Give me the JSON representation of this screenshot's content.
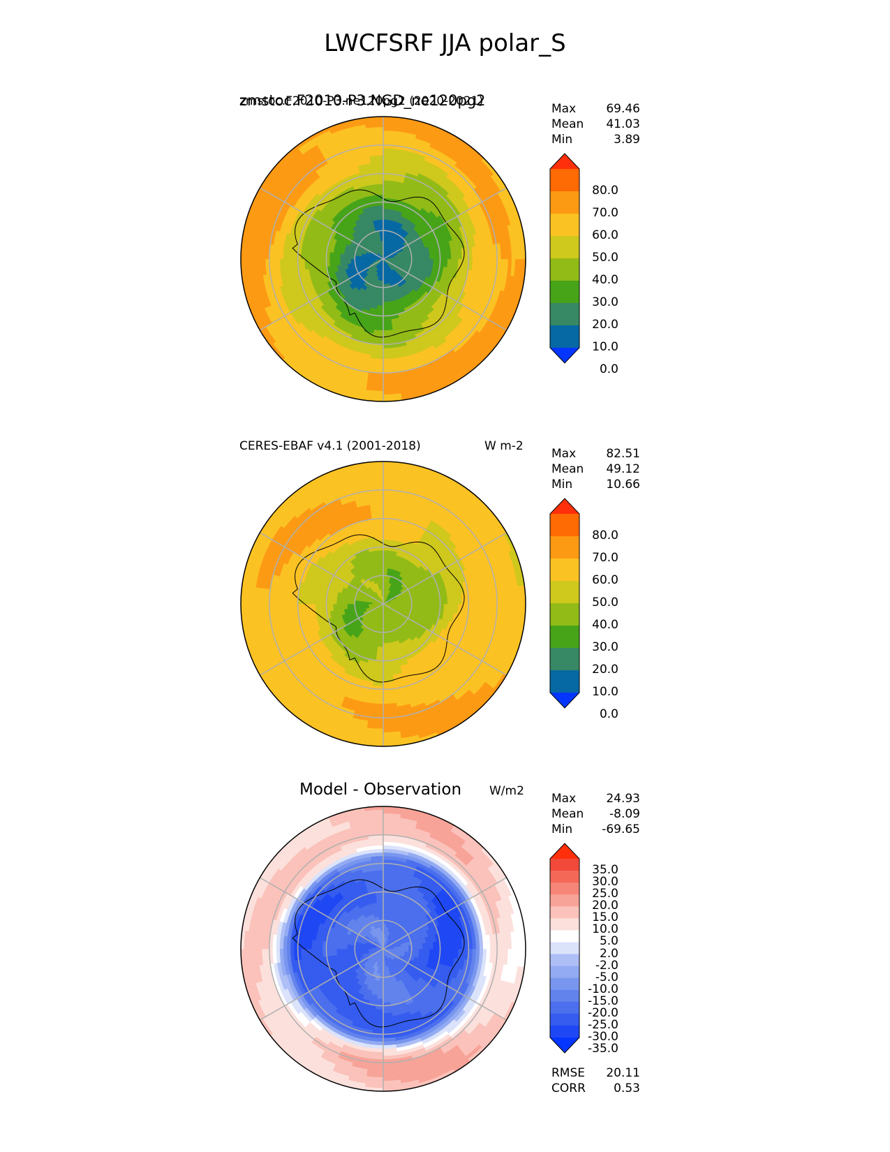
{
  "figure_title": "LWCFSRF JJA polar_S",
  "panels": [
    {
      "left_title": "zmstoc.F2010-P3.NGD_ne120pg2",
      "left_title_overlap": "zmstoc.F2010-P3.ne120pg2 (2020-2021)",
      "center_title": "",
      "units": "",
      "stats": {
        "max_label": "Max",
        "max": "69.46",
        "mean_label": "Mean",
        "mean": "41.03",
        "min_label": "Min",
        "min": "3.89"
      },
      "colorbar_ticks": [
        "80.0",
        "70.0",
        "60.0",
        "50.0",
        "40.0",
        "30.0",
        "20.0",
        "10.0",
        "0.0"
      ]
    },
    {
      "left_title": "CERES-EBAF v4.1 (2001-2018)",
      "left_title_overlap": "",
      "center_title": "",
      "units": "W m-2",
      "stats": {
        "max_label": "Max",
        "max": "82.51",
        "mean_label": "Mean",
        "mean": "49.12",
        "min_label": "Min",
        "min": "10.66"
      },
      "colorbar_ticks": [
        "80.0",
        "70.0",
        "60.0",
        "50.0",
        "40.0",
        "30.0",
        "20.0",
        "10.0",
        "0.0"
      ]
    },
    {
      "left_title": "",
      "left_title_overlap": "",
      "center_title": "Model - Observation",
      "units": "W/m2",
      "stats": {
        "max_label": "Max",
        "max": "24.93",
        "mean_label": "Mean",
        "mean": "-8.09",
        "min_label": "Min",
        "min": "-69.65"
      },
      "colorbar_ticks": [
        "35.0",
        "30.0",
        "25.0",
        "20.0",
        "15.0",
        "10.0",
        "5.0",
        "2.0",
        "-2.0",
        "-5.0",
        "-10.0",
        "-15.0",
        "-20.0",
        "-25.0",
        "-30.0",
        "-35.0"
      ],
      "extra_stats": {
        "rmse_label": "RMSE",
        "rmse": "20.11",
        "corr_label": "CORR",
        "corr": "0.53"
      }
    }
  ],
  "chart_data": [
    {
      "type": "heatmap",
      "projection": "south polar stereographic",
      "title": "zmstoc.F2010-P3.NGD_ne120pg2",
      "colorbar_levels": [
        0,
        10,
        20,
        30,
        40,
        50,
        60,
        70,
        80
      ],
      "colorbar_colors": [
        "#0536ff",
        "#0769a3",
        "#378864",
        "#47a419",
        "#92bb17",
        "#cfc81d",
        "#fbc223",
        "#fd9a14",
        "#fe6a03",
        "#fe2f0a"
      ],
      "zonal_profile_lat_colat": {
        "colat_deg": [
          0,
          10,
          15,
          20,
          25,
          30,
          35,
          40
        ],
        "value": [
          8,
          12,
          25,
          35,
          45,
          55,
          62,
          62
        ]
      },
      "max": 69.46,
      "mean": 41.03,
      "min": 3.89
    },
    {
      "type": "heatmap",
      "projection": "south polar stereographic",
      "title": "CERES-EBAF v4.1 (2001-2018)",
      "units": "W m-2",
      "colorbar_levels": [
        0,
        10,
        20,
        30,
        40,
        50,
        60,
        70,
        80
      ],
      "colorbar_colors": [
        "#0536ff",
        "#0769a3",
        "#378864",
        "#47a419",
        "#92bb17",
        "#cfc81d",
        "#fbc223",
        "#fd9a14",
        "#fe6a03",
        "#fe2f0a"
      ],
      "zonal_profile_lat_colat": {
        "colat_deg": [
          0,
          10,
          15,
          20,
          25,
          30,
          35,
          40
        ],
        "value": [
          35,
          33,
          40,
          50,
          55,
          58,
          57,
          55
        ]
      },
      "max": 82.51,
      "mean": 49.12,
      "min": 10.66
    },
    {
      "type": "heatmap",
      "projection": "south polar stereographic",
      "title": "Model - Observation",
      "units": "W/m2",
      "colorbar_levels": [
        -35,
        -30,
        -25,
        -20,
        -15,
        -10,
        -5,
        -2,
        2,
        5,
        10,
        15,
        20,
        25,
        30,
        35
      ],
      "colorbar_colors": [
        "#0536ff",
        "#1f48f4",
        "#355cef",
        "#4b6fed",
        "#6283ec",
        "#7996ef",
        "#93abf2",
        "#aebff6",
        "#dbe3fb",
        "#ffffff",
        "#fce0dc",
        "#fac2ba",
        "#f8a398",
        "#f68677",
        "#f46858",
        "#f14a3a",
        "#fe2f0a"
      ],
      "zonal_profile_lat_colat": {
        "colat_deg": [
          0,
          10,
          15,
          20,
          25,
          28,
          32,
          40
        ],
        "value": [
          -18,
          -22,
          -25,
          -28,
          -25,
          0,
          12,
          10
        ]
      },
      "max": 24.93,
      "mean": -8.09,
      "min": -69.65,
      "rmse": 20.11,
      "corr": 0.53
    }
  ]
}
